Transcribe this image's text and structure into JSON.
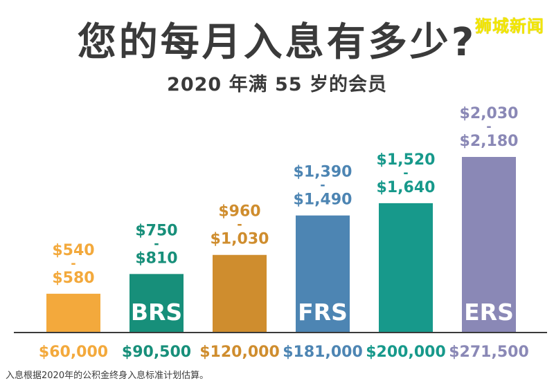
{
  "watermark": "狮城新闻",
  "chart_data": {
    "type": "bar",
    "title": "您的每月入息有多少?",
    "subtitle": "2020 年满 55 岁的会员",
    "categories": [
      "$60,000",
      "$90,500",
      "$120,000",
      "$181,000",
      "$200,000",
      "$271,500"
    ],
    "series": [
      {
        "values": [
          60000,
          90500,
          120000,
          181000,
          200000,
          271500
        ]
      }
    ],
    "bar_labels": [
      "",
      "BRS",
      "",
      "FRS",
      "",
      "ERS"
    ],
    "payout_ranges": [
      {
        "low": "$540",
        "sep": "-",
        "high": "$580"
      },
      {
        "low": "$750",
        "sep": "-",
        "high": "$810"
      },
      {
        "low": "$960",
        "sep": "-",
        "high": "$1,030"
      },
      {
        "low": "$1,390",
        "sep": "-",
        "high": "$1,490"
      },
      {
        "low": "$1,520",
        "sep": "-",
        "high": "$1,640"
      },
      {
        "low": "$2,030",
        "sep": "-",
        "high": "$2,180"
      }
    ],
    "colors": [
      "#f3a93c",
      "#178f7a",
      "#cf8d2e",
      "#4d85b3",
      "#17998b",
      "#8a88b6"
    ],
    "label_colors": [
      "#f3a93c",
      "#178f7a",
      "#cf8d2e",
      "#4d85b3",
      "#17998b",
      "#8a88b6"
    ],
    "ylim": [
      0,
      300000
    ],
    "grid": false
  },
  "footnote": "入息根据2020年的公积金终身入息标准计划估算。"
}
